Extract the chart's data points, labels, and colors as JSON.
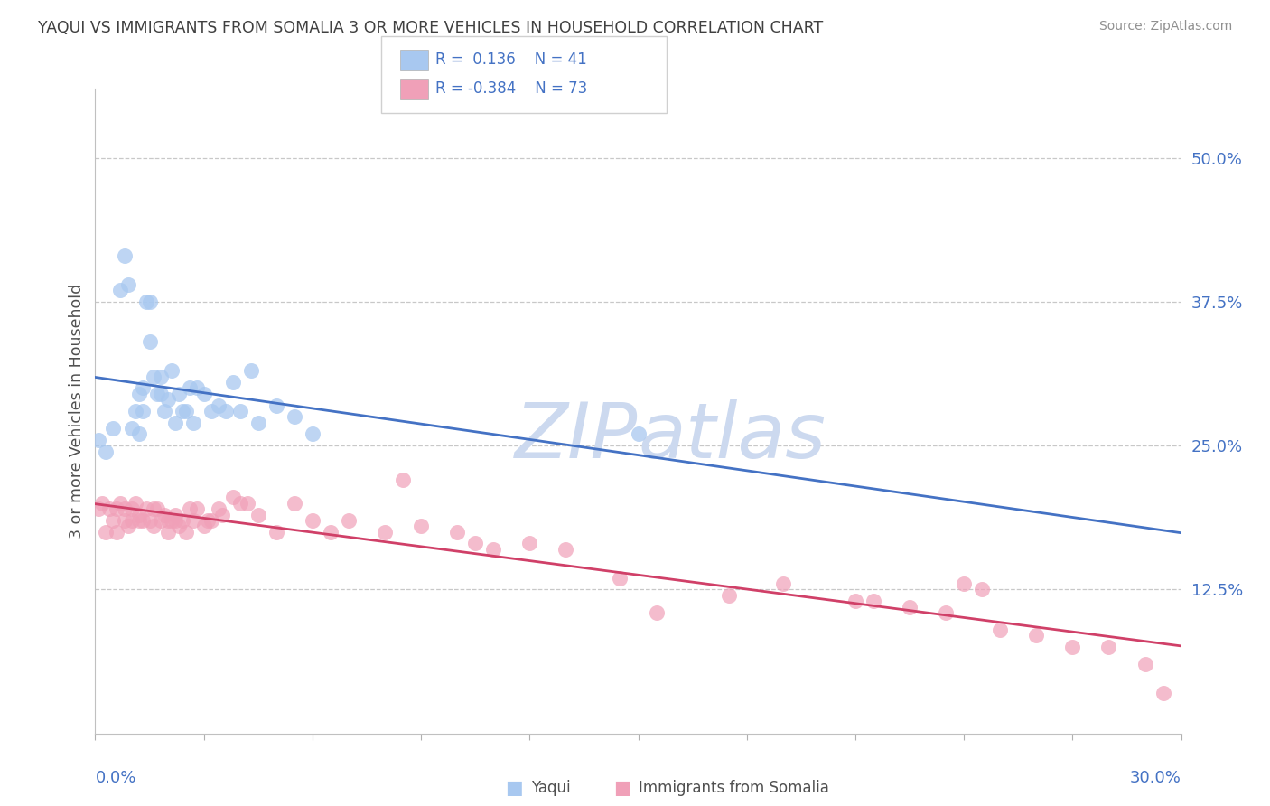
{
  "title": "YAQUI VS IMMIGRANTS FROM SOMALIA 3 OR MORE VEHICLES IN HOUSEHOLD CORRELATION CHART",
  "source": "Source: ZipAtlas.com",
  "ylabel": "3 or more Vehicles in Household",
  "ytick_labels": [
    "50.0%",
    "37.5%",
    "25.0%",
    "12.5%"
  ],
  "ytick_values": [
    0.5,
    0.375,
    0.25,
    0.125
  ],
  "xmin": 0.0,
  "xmax": 0.3,
  "ymin": 0.0,
  "ymax": 0.56,
  "color_yaqui": "#a8c8f0",
  "color_somalia": "#f0a0b8",
  "color_yaqui_line": "#4472c4",
  "color_somalia_line": "#d04068",
  "watermark_color": "#ccd9ef",
  "background_color": "#ffffff",
  "title_color": "#404040",
  "yaqui_x": [
    0.001,
    0.003,
    0.005,
    0.007,
    0.008,
    0.009,
    0.01,
    0.011,
    0.012,
    0.012,
    0.013,
    0.013,
    0.014,
    0.015,
    0.015,
    0.016,
    0.017,
    0.018,
    0.018,
    0.019,
    0.02,
    0.021,
    0.022,
    0.023,
    0.024,
    0.025,
    0.026,
    0.027,
    0.028,
    0.03,
    0.032,
    0.034,
    0.036,
    0.038,
    0.04,
    0.043,
    0.045,
    0.05,
    0.055,
    0.06,
    0.15
  ],
  "yaqui_y": [
    0.255,
    0.245,
    0.265,
    0.385,
    0.415,
    0.39,
    0.265,
    0.28,
    0.26,
    0.295,
    0.3,
    0.28,
    0.375,
    0.375,
    0.34,
    0.31,
    0.295,
    0.31,
    0.295,
    0.28,
    0.29,
    0.315,
    0.27,
    0.295,
    0.28,
    0.28,
    0.3,
    0.27,
    0.3,
    0.295,
    0.28,
    0.285,
    0.28,
    0.305,
    0.28,
    0.315,
    0.27,
    0.285,
    0.275,
    0.26,
    0.26
  ],
  "somalia_x": [
    0.001,
    0.002,
    0.003,
    0.004,
    0.005,
    0.006,
    0.006,
    0.007,
    0.008,
    0.008,
    0.009,
    0.01,
    0.01,
    0.011,
    0.012,
    0.012,
    0.013,
    0.014,
    0.015,
    0.016,
    0.016,
    0.017,
    0.018,
    0.019,
    0.02,
    0.02,
    0.021,
    0.022,
    0.022,
    0.023,
    0.024,
    0.025,
    0.026,
    0.027,
    0.028,
    0.03,
    0.031,
    0.032,
    0.034,
    0.035,
    0.038,
    0.04,
    0.042,
    0.045,
    0.05,
    0.055,
    0.06,
    0.065,
    0.07,
    0.08,
    0.085,
    0.09,
    0.1,
    0.105,
    0.11,
    0.12,
    0.13,
    0.145,
    0.155,
    0.175,
    0.19,
    0.21,
    0.215,
    0.225,
    0.235,
    0.24,
    0.245,
    0.25,
    0.26,
    0.27,
    0.28,
    0.29,
    0.295
  ],
  "somalia_y": [
    0.195,
    0.2,
    0.175,
    0.195,
    0.185,
    0.175,
    0.195,
    0.2,
    0.185,
    0.195,
    0.18,
    0.195,
    0.185,
    0.2,
    0.19,
    0.185,
    0.185,
    0.195,
    0.185,
    0.195,
    0.18,
    0.195,
    0.185,
    0.19,
    0.185,
    0.175,
    0.185,
    0.19,
    0.185,
    0.18,
    0.185,
    0.175,
    0.195,
    0.185,
    0.195,
    0.18,
    0.185,
    0.185,
    0.195,
    0.19,
    0.205,
    0.2,
    0.2,
    0.19,
    0.175,
    0.2,
    0.185,
    0.175,
    0.185,
    0.175,
    0.22,
    0.18,
    0.175,
    0.165,
    0.16,
    0.165,
    0.16,
    0.135,
    0.105,
    0.12,
    0.13,
    0.115,
    0.115,
    0.11,
    0.105,
    0.13,
    0.125,
    0.09,
    0.085,
    0.075,
    0.075,
    0.06,
    0.035
  ]
}
